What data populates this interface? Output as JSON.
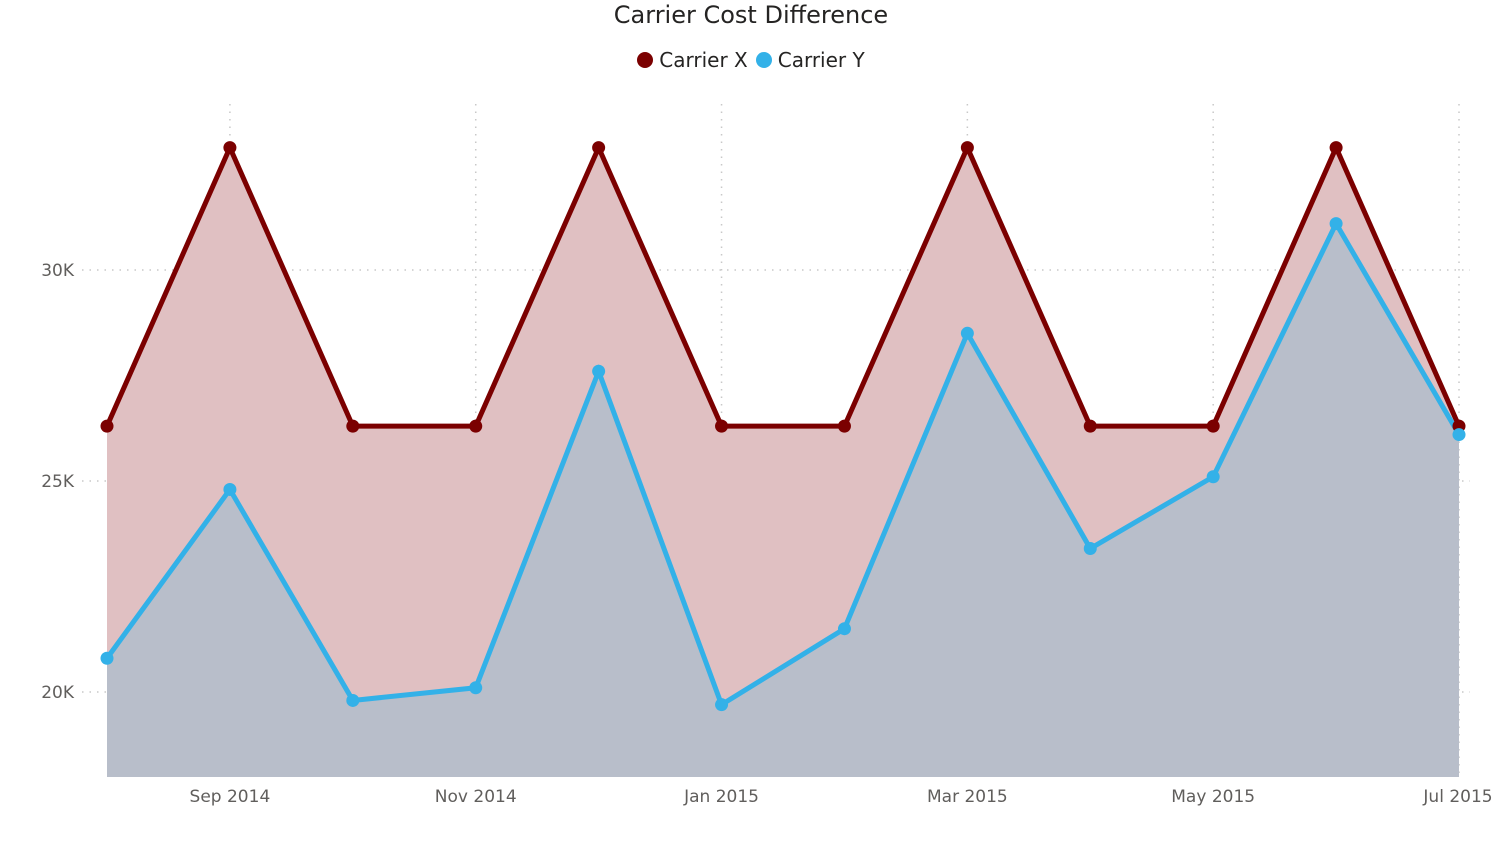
{
  "colors": {
    "carrier_x": "#7b0000",
    "carrier_y": "#33b1e8",
    "area_x": "#e0c0c2",
    "area_y": "#b8beca",
    "grid": "#c8c8c8",
    "axis_text": "#605e5c"
  },
  "chart_data": {
    "type": "area",
    "title": "Carrier Cost Difference",
    "xlabel": "",
    "ylabel": "",
    "legend_position": "top-center",
    "grid": true,
    "ylim": [
      18000,
      34000
    ],
    "y_ticks": [
      20000,
      25000,
      30000
    ],
    "y_tick_labels": [
      "20K",
      "25K",
      "30K"
    ],
    "x_ticks": [
      "2014-09",
      "2014-11",
      "2015-01",
      "2015-03",
      "2015-05",
      "2015-07"
    ],
    "x_tick_labels": [
      "Sep 2014",
      "Nov 2014",
      "Jan 2015",
      "Mar 2015",
      "May 2015",
      "Jul 2015"
    ],
    "x": [
      "2014-08",
      "2014-09",
      "2014-10",
      "2014-11",
      "2014-12",
      "2015-01",
      "2015-02",
      "2015-03",
      "2015-04",
      "2015-05",
      "2015-06",
      "2015-07"
    ],
    "series": [
      {
        "name": "Carrier X",
        "values": [
          26300,
          32900,
          26300,
          26300,
          32900,
          26300,
          26300,
          32900,
          26300,
          26300,
          32900,
          26300
        ]
      },
      {
        "name": "Carrier Y",
        "values": [
          20800,
          24800,
          19800,
          20100,
          27600,
          19700,
          21500,
          28500,
          23400,
          25100,
          31100,
          26100
        ]
      }
    ]
  }
}
